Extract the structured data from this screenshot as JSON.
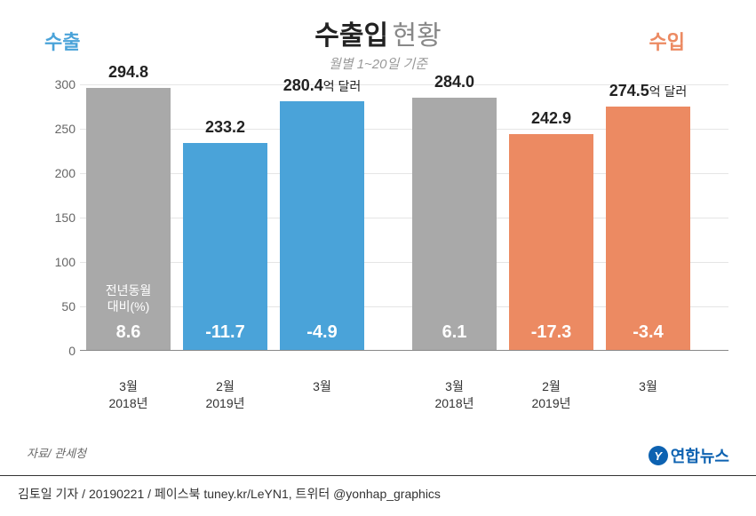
{
  "title_bold": "수출입",
  "title_light": "현황",
  "subtitle": "월별 1~20일 기준",
  "legend_export": {
    "text": "수출",
    "color": "#4aa3d9"
  },
  "legend_import": {
    "text": "수입",
    "color": "#ec8a62"
  },
  "y_axis": {
    "min": 0,
    "max": 320,
    "ticks": [
      0,
      50,
      100,
      150,
      200,
      250,
      300
    ]
  },
  "colors": {
    "gray": "#a9a9a9",
    "export": "#4aa3d9",
    "import": "#ec8a62",
    "grid": "#e5e5e5",
    "bg": "#ffffff"
  },
  "inner_label_title": "전년동월\n대비(%)",
  "unit_suffix": "억 달러",
  "groups": [
    {
      "gap_before": false,
      "bars": [
        {
          "color": "gray",
          "value": 294.8,
          "label": "294.8",
          "pct": "8.6",
          "show_inner_title": true,
          "x_month": "3월",
          "x_year": "2018년"
        },
        {
          "color": "export",
          "value": 233.2,
          "label": "233.2",
          "pct": "-11.7",
          "x_month": "2월",
          "x_year": "2019년"
        },
        {
          "color": "export",
          "value": 280.4,
          "label": "280.4",
          "unit": true,
          "pct": "-4.9",
          "x_month": "3월",
          "x_year": ""
        }
      ]
    },
    {
      "gap_before": true,
      "bars": [
        {
          "color": "gray",
          "value": 284.0,
          "label": "284.0",
          "pct": "6.1",
          "x_month": "3월",
          "x_year": "2018년"
        },
        {
          "color": "import",
          "value": 242.9,
          "label": "242.9",
          "pct": "-17.3",
          "x_month": "2월",
          "x_year": "2019년"
        },
        {
          "color": "import",
          "value": 274.5,
          "label": "274.5",
          "unit": true,
          "pct": "-3.4",
          "x_month": "3월",
          "x_year": ""
        }
      ]
    }
  ],
  "source": "자료/ 관세청",
  "logo_text": "연합뉴스",
  "logo_icon": "Y",
  "footer": "김토일 기자 / 20190221 / 페이스북 tuney.kr/LeYN1, 트위터 @yonhap_graphics"
}
